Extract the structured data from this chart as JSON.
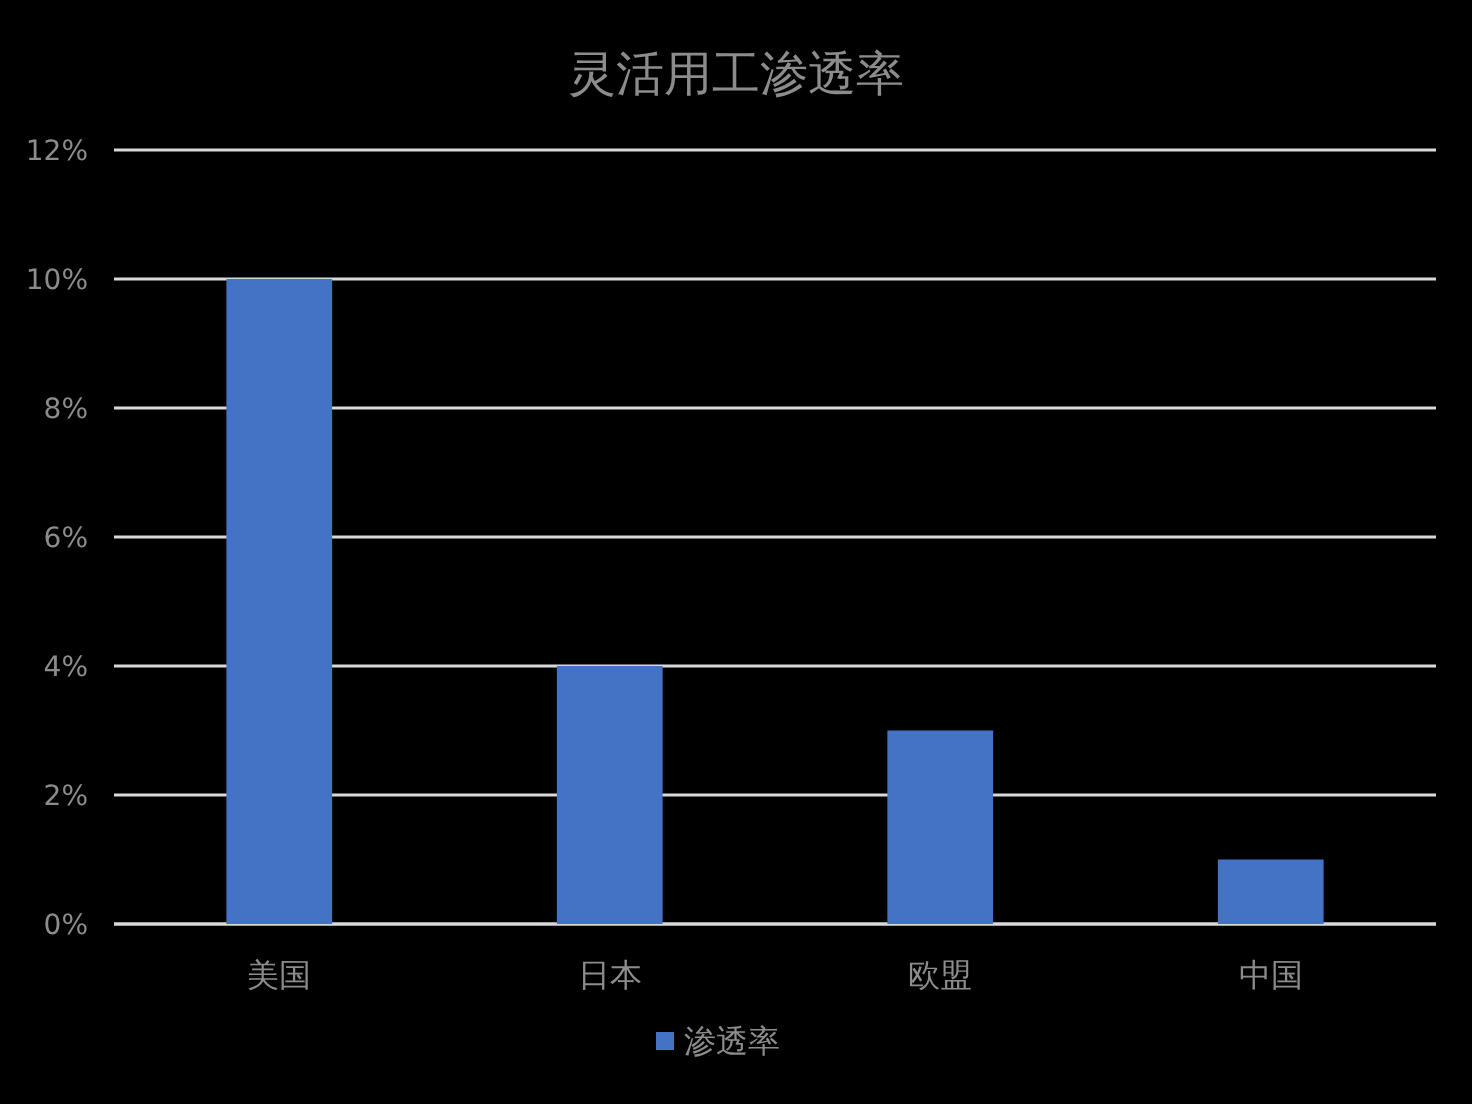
{
  "chart_data": {
    "type": "bar",
    "title": "灵活用工渗透率",
    "categories": [
      "美国",
      "日本",
      "欧盟",
      "中国"
    ],
    "series": [
      {
        "name": "渗透率",
        "color": "#4472c4",
        "values": [
          10,
          4,
          3,
          1
        ]
      }
    ],
    "ylim": [
      0,
      12
    ],
    "yticks": [
      {
        "value": 0,
        "label": "0%"
      },
      {
        "value": 2,
        "label": "2%"
      },
      {
        "value": 4,
        "label": "4%"
      },
      {
        "value": 6,
        "label": "6%"
      },
      {
        "value": 8,
        "label": "8%"
      },
      {
        "value": 10,
        "label": "10%"
      },
      {
        "value": 12,
        "label": "12%"
      }
    ],
    "grid": "y",
    "legend": "bottom"
  }
}
